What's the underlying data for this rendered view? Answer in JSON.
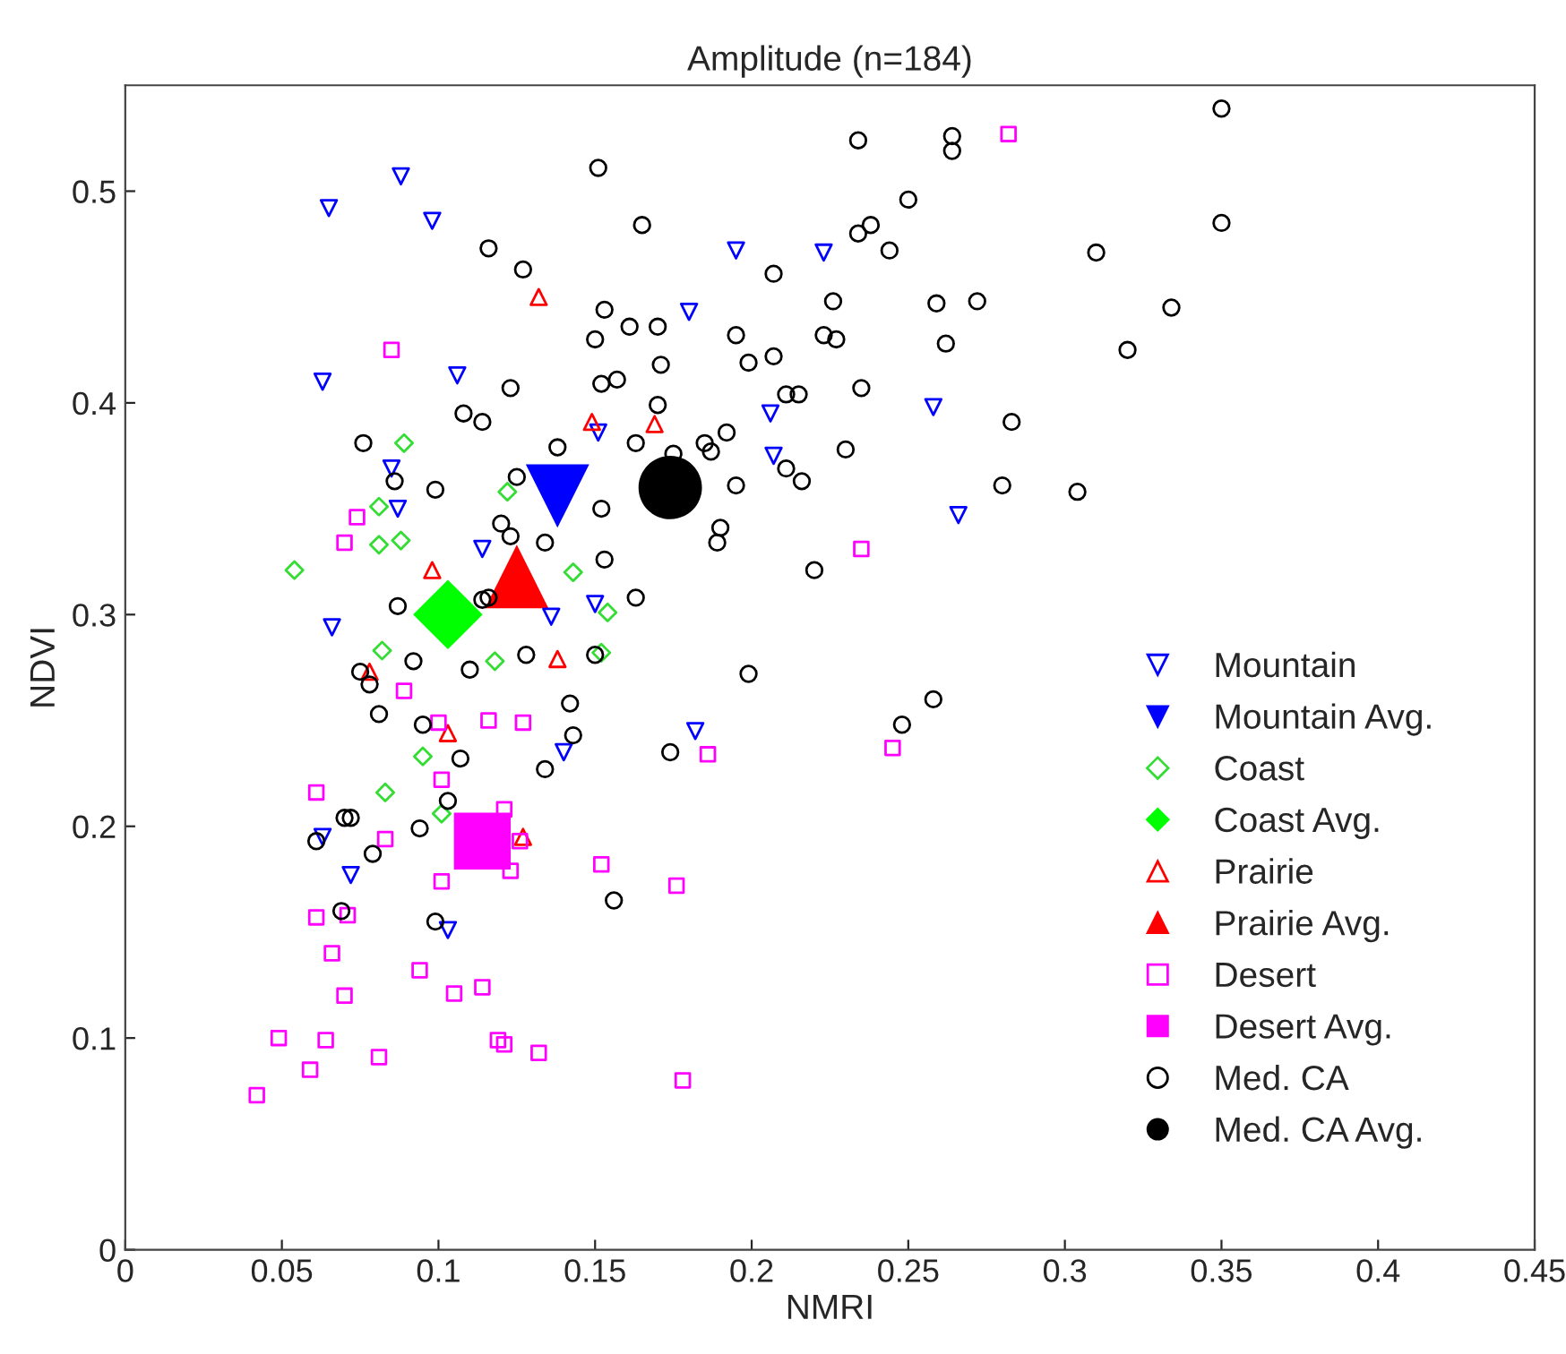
{
  "chart_data": {
    "type": "scatter",
    "title": "Amplitude (n=184)",
    "xlabel": "NMRI",
    "ylabel": "NDVI",
    "xlim": [
      0,
      0.45
    ],
    "ylim": [
      0,
      0.55
    ],
    "xticks": [
      0,
      0.05,
      0.1,
      0.15,
      0.2,
      0.25,
      0.3,
      0.35,
      0.4,
      0.45
    ],
    "yticks": [
      0,
      0.1,
      0.2,
      0.3,
      0.4,
      0.5
    ],
    "grid": false,
    "legend": "bottom right",
    "series": [
      {
        "name": "Mountain",
        "color": "#0000ff",
        "marker": "triangle_down",
        "x": [
          0.088,
          0.065,
          0.098,
          0.063,
          0.106,
          0.085,
          0.087,
          0.114,
          0.066,
          0.136,
          0.15,
          0.151,
          0.195,
          0.223,
          0.18,
          0.206,
          0.207,
          0.258,
          0.266,
          0.182,
          0.14,
          0.063,
          0.072,
          0.103
        ],
        "values": [
          0.507,
          0.492,
          0.486,
          0.41,
          0.413,
          0.369,
          0.35,
          0.331,
          0.294,
          0.299,
          0.305,
          0.386,
          0.472,
          0.471,
          0.443,
          0.395,
          0.375,
          0.398,
          0.347,
          0.245,
          0.235,
          0.195,
          0.177,
          0.151
        ]
      },
      {
        "name": "Mountain Avg.",
        "color": "#0000ff",
        "marker": "triangle_down",
        "x": [
          0.138
        ],
        "values": [
          0.356
        ]
      },
      {
        "name": "Coast",
        "color": "#33dd33",
        "marker": "diamond",
        "x": [
          0.089,
          0.081,
          0.122,
          0.081,
          0.088,
          0.054,
          0.143,
          0.154,
          0.082,
          0.118,
          0.152,
          0.095,
          0.083,
          0.101
        ],
        "values": [
          0.381,
          0.351,
          0.358,
          0.333,
          0.335,
          0.321,
          0.32,
          0.301,
          0.283,
          0.278,
          0.282,
          0.233,
          0.216,
          0.206
        ]
      },
      {
        "name": "Coast Avg.",
        "color": "#00ff00",
        "marker": "diamond",
        "x": [
          0.103
        ],
        "values": [
          0.3
        ]
      },
      {
        "name": "Prairie",
        "color": "#ff0000",
        "marker": "triangle",
        "x": [
          0.132,
          0.149,
          0.098,
          0.169,
          0.078,
          0.138,
          0.103,
          0.127
        ],
        "values": [
          0.45,
          0.391,
          0.321,
          0.39,
          0.273,
          0.279,
          0.244,
          0.195
        ]
      },
      {
        "name": "Prairie Avg.",
        "color": "#ff0000",
        "marker": "triangle",
        "x": [
          0.125
        ],
        "values": [
          0.318
        ]
      },
      {
        "name": "Desert",
        "color": "#ff00ff",
        "marker": "square",
        "x": [
          0.085,
          0.074,
          0.07,
          0.282,
          0.235,
          0.089,
          0.1,
          0.116,
          0.127,
          0.101,
          0.121,
          0.061,
          0.083,
          0.126,
          0.123,
          0.101,
          0.061,
          0.071,
          0.066,
          0.094,
          0.07,
          0.105,
          0.114,
          0.049,
          0.064,
          0.119,
          0.121,
          0.081,
          0.132,
          0.059,
          0.042,
          0.152,
          0.186,
          0.245,
          0.176,
          0.178
        ],
        "values": [
          0.425,
          0.346,
          0.334,
          0.527,
          0.331,
          0.264,
          0.249,
          0.25,
          0.249,
          0.222,
          0.208,
          0.216,
          0.194,
          0.193,
          0.179,
          0.174,
          0.157,
          0.158,
          0.14,
          0.132,
          0.12,
          0.121,
          0.124,
          0.1,
          0.099,
          0.099,
          0.097,
          0.091,
          0.093,
          0.085,
          0.073,
          0.182,
          0.234,
          0.237,
          0.172,
          0.08
        ]
      },
      {
        "name": "Desert Avg.",
        "color": "#ff00ff",
        "marker": "square",
        "x": [
          0.114
        ],
        "values": [
          0.193
        ]
      },
      {
        "name": "Med. CA",
        "color": "#000000",
        "marker": "circle",
        "x": [
          0.151,
          0.116,
          0.127,
          0.153,
          0.15,
          0.123,
          0.152,
          0.108,
          0.114,
          0.076,
          0.138,
          0.086,
          0.099,
          0.125,
          0.12,
          0.123,
          0.134,
          0.152,
          0.153,
          0.087,
          0.114,
          0.116,
          0.092,
          0.11,
          0.128,
          0.15,
          0.075,
          0.078,
          0.081,
          0.095,
          0.107,
          0.142,
          0.143,
          0.134,
          0.103,
          0.07,
          0.072,
          0.094,
          0.061,
          0.079,
          0.069,
          0.099,
          0.234,
          0.264,
          0.264,
          0.165,
          0.25,
          0.234,
          0.238,
          0.244,
          0.31,
          0.207,
          0.226,
          0.259,
          0.272,
          0.161,
          0.17,
          0.195,
          0.223,
          0.227,
          0.262,
          0.171,
          0.199,
          0.207,
          0.157,
          0.235,
          0.211,
          0.215,
          0.17,
          0.163,
          0.192,
          0.185,
          0.187,
          0.175,
          0.23,
          0.211,
          0.216,
          0.195,
          0.28,
          0.304,
          0.283,
          0.32,
          0.19,
          0.189,
          0.163,
          0.22,
          0.35,
          0.35,
          0.334,
          0.199,
          0.258,
          0.248,
          0.174,
          0.156
        ],
        "values": [
          0.511,
          0.473,
          0.463,
          0.444,
          0.43,
          0.407,
          0.409,
          0.395,
          0.391,
          0.381,
          0.379,
          0.363,
          0.359,
          0.365,
          0.343,
          0.337,
          0.334,
          0.35,
          0.326,
          0.304,
          0.307,
          0.308,
          0.278,
          0.274,
          0.281,
          0.281,
          0.273,
          0.267,
          0.253,
          0.248,
          0.232,
          0.258,
          0.243,
          0.227,
          0.212,
          0.204,
          0.204,
          0.199,
          0.193,
          0.187,
          0.16,
          0.155,
          0.524,
          0.526,
          0.519,
          0.484,
          0.496,
          0.48,
          0.484,
          0.472,
          0.471,
          0.461,
          0.448,
          0.447,
          0.448,
          0.436,
          0.436,
          0.432,
          0.432,
          0.43,
          0.428,
          0.418,
          0.419,
          0.422,
          0.411,
          0.407,
          0.404,
          0.404,
          0.399,
          0.381,
          0.386,
          0.381,
          0.377,
          0.376,
          0.378,
          0.369,
          0.363,
          0.361,
          0.361,
          0.358,
          0.391,
          0.425,
          0.341,
          0.334,
          0.308,
          0.321,
          0.539,
          0.485,
          0.445,
          0.272,
          0.26,
          0.248,
          0.235,
          0.165
        ]
      },
      {
        "name": "Med. CA Avg.",
        "color": "#000000",
        "marker": "circle",
        "x": [
          0.174
        ],
        "values": [
          0.36
        ]
      }
    ]
  }
}
